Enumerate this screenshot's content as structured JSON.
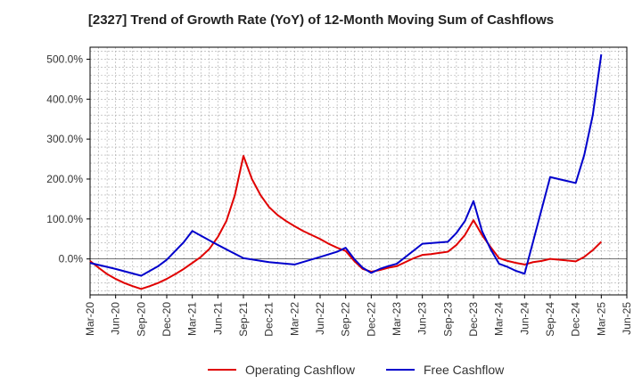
{
  "chart_data": {
    "type": "line",
    "title": "[2327]  Trend of Growth Rate (YoY) of 12-Month Moving Sum of Cashflows",
    "xlabel": "",
    "ylabel": "",
    "ylim": [
      -90,
      530
    ],
    "yticks": [
      0,
      100,
      200,
      300,
      400,
      500
    ],
    "ytick_labels": [
      "0.0%",
      "100.0%",
      "200.0%",
      "300.0%",
      "400.0%",
      "500.0%"
    ],
    "x_tick_labels": [
      "Mar-20",
      "Jun-20",
      "Sep-20",
      "Dec-20",
      "Mar-21",
      "Jun-21",
      "Sep-21",
      "Dec-21",
      "Mar-22",
      "Jun-22",
      "Sep-22",
      "Dec-22",
      "Mar-23",
      "Jun-23",
      "Sep-23",
      "Dec-23",
      "Mar-24",
      "Jun-24",
      "Sep-24",
      "Dec-24",
      "Mar-25",
      "Jun-25"
    ],
    "x_range_months": [
      "Mar-20",
      "Jun-25"
    ],
    "grid": true,
    "legend_position": "bottom",
    "series": [
      {
        "name": "Operating Cashflow",
        "color": "#e00000",
        "points": [
          [
            "Mar-20",
            -5
          ],
          [
            "Apr-20",
            -22
          ],
          [
            "May-20",
            -38
          ],
          [
            "Jun-20",
            -50
          ],
          [
            "Jul-20",
            -60
          ],
          [
            "Aug-20",
            -68
          ],
          [
            "Sep-20",
            -75
          ],
          [
            "Oct-20",
            -68
          ],
          [
            "Nov-20",
            -60
          ],
          [
            "Dec-20",
            -50
          ],
          [
            "Jan-21",
            -38
          ],
          [
            "Feb-21",
            -25
          ],
          [
            "Mar-21",
            -10
          ],
          [
            "Apr-21",
            5
          ],
          [
            "May-21",
            25
          ],
          [
            "Jun-21",
            55
          ],
          [
            "Jul-21",
            95
          ],
          [
            "Aug-21",
            160
          ],
          [
            "Sep-21",
            258
          ],
          [
            "Oct-21",
            200
          ],
          [
            "Nov-21",
            160
          ],
          [
            "Dec-21",
            130
          ],
          [
            "Jan-22",
            110
          ],
          [
            "Feb-22",
            95
          ],
          [
            "Mar-22",
            82
          ],
          [
            "Apr-22",
            70
          ],
          [
            "May-22",
            60
          ],
          [
            "Jun-22",
            50
          ],
          [
            "Jul-22",
            38
          ],
          [
            "Aug-22",
            28
          ],
          [
            "Sep-22",
            20
          ],
          [
            "Oct-22",
            -5
          ],
          [
            "Nov-22",
            -25
          ],
          [
            "Dec-22",
            -32
          ],
          [
            "Jan-23",
            -28
          ],
          [
            "Feb-23",
            -22
          ],
          [
            "Mar-23",
            -18
          ],
          [
            "Apr-23",
            -8
          ],
          [
            "May-23",
            2
          ],
          [
            "Jun-23",
            10
          ],
          [
            "Jul-23",
            12
          ],
          [
            "Aug-23",
            15
          ],
          [
            "Sep-23",
            18
          ],
          [
            "Oct-23",
            35
          ],
          [
            "Nov-23",
            60
          ],
          [
            "Dec-23",
            97
          ],
          [
            "Jan-24",
            60
          ],
          [
            "Feb-24",
            30
          ],
          [
            "Mar-24",
            2
          ],
          [
            "Apr-24",
            -5
          ],
          [
            "May-24",
            -10
          ],
          [
            "Jun-24",
            -14
          ],
          [
            "Jul-24",
            -8
          ],
          [
            "Aug-24",
            -5
          ],
          [
            "Sep-24",
            0
          ],
          [
            "Oct-24",
            -2
          ],
          [
            "Nov-24",
            -4
          ],
          [
            "Dec-24",
            -6
          ],
          [
            "Jan-25",
            5
          ],
          [
            "Feb-25",
            22
          ],
          [
            "Mar-25",
            43
          ]
        ]
      },
      {
        "name": "Free Cashflow",
        "color": "#0000cc",
        "points": [
          [
            "Mar-20",
            -10
          ],
          [
            "Jun-20",
            -25
          ],
          [
            "Sep-20",
            -42
          ],
          [
            "Oct-20",
            -30
          ],
          [
            "Nov-20",
            -18
          ],
          [
            "Dec-20",
            -2
          ],
          [
            "Jan-21",
            20
          ],
          [
            "Feb-21",
            42
          ],
          [
            "Mar-21",
            70
          ],
          [
            "Jun-21",
            35
          ],
          [
            "Sep-21",
            2
          ],
          [
            "Dec-21",
            -8
          ],
          [
            "Mar-22",
            -14
          ],
          [
            "Jun-22",
            5
          ],
          [
            "Aug-22",
            18
          ],
          [
            "Sep-22",
            28
          ],
          [
            "Oct-22",
            0
          ],
          [
            "Nov-22",
            -22
          ],
          [
            "Dec-22",
            -35
          ],
          [
            "Jan-23",
            -25
          ],
          [
            "Feb-23",
            -18
          ],
          [
            "Mar-23",
            -12
          ],
          [
            "Jun-23",
            38
          ],
          [
            "Sep-23",
            43
          ],
          [
            "Oct-23",
            65
          ],
          [
            "Nov-23",
            95
          ],
          [
            "Dec-23",
            145
          ],
          [
            "Jan-24",
            70
          ],
          [
            "Feb-24",
            25
          ],
          [
            "Mar-24",
            -12
          ],
          [
            "Apr-24",
            -20
          ],
          [
            "May-24",
            -30
          ],
          [
            "Jun-24",
            -37
          ],
          [
            "Sep-24",
            205
          ],
          [
            "Dec-24",
            190
          ],
          [
            "Jan-25",
            260
          ],
          [
            "Feb-25",
            360
          ],
          [
            "Mar-25",
            512
          ]
        ]
      }
    ]
  }
}
